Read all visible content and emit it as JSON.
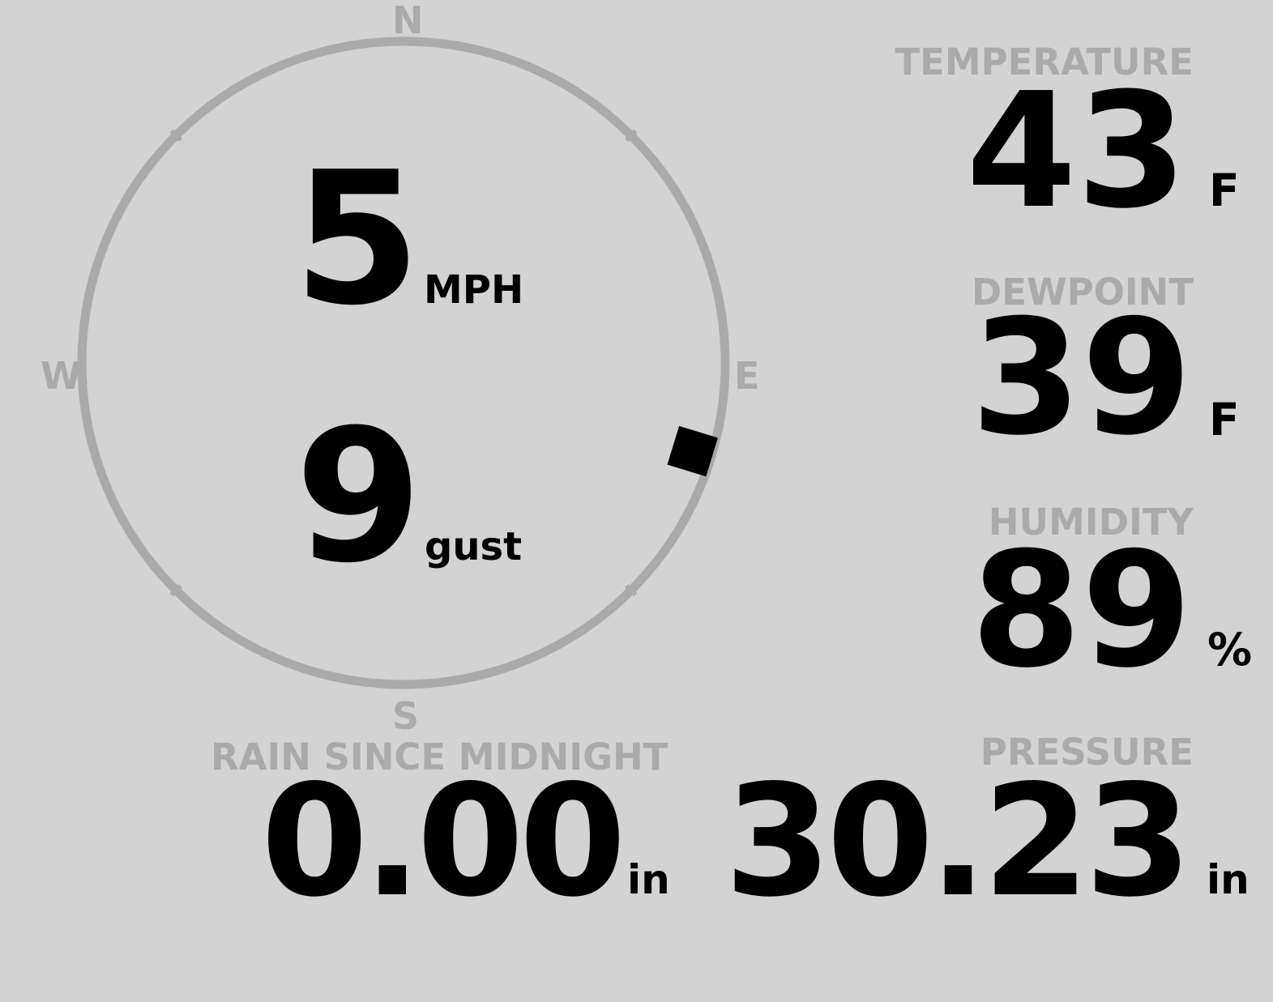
{
  "colors": {
    "background": "#d3d3d3",
    "label": "#aaaaaa",
    "value": "#000000",
    "ring": "#aaaaaa",
    "marker": "#000000"
  },
  "wind": {
    "directions": {
      "n": "N",
      "e": "E",
      "s": "S",
      "w": "W"
    },
    "speed": "5",
    "speed_unit": "MPH",
    "gust": "9",
    "gust_unit": "gust",
    "direction_degrees": 107
  },
  "temperature": {
    "label": "TEMPERATURE",
    "value": "43",
    "unit": "F"
  },
  "dewpoint": {
    "label": "DEWPOINT",
    "value": "39",
    "unit": "F"
  },
  "humidity": {
    "label": "HUMIDITY",
    "value": "89",
    "unit": "%"
  },
  "pressure": {
    "label": "PRESSURE",
    "value": "30.23",
    "unit": "in"
  },
  "rain": {
    "label": "RAIN SINCE MIDNIGHT",
    "value": "0.00",
    "unit": "in"
  }
}
